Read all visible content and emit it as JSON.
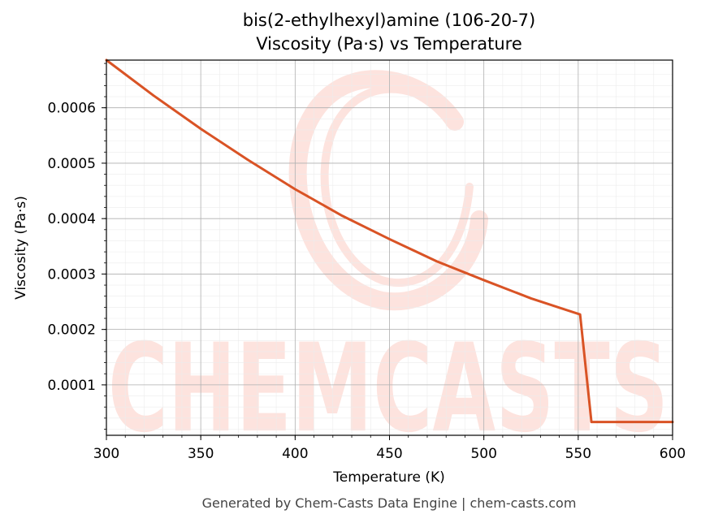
{
  "chart_data": {
    "type": "line",
    "title": "bis(2-ethylhexyl)amine (106-20-7)",
    "subtitle": "Viscosity (Pa·s) vs Temperature",
    "xlabel": "Temperature (K)",
    "ylabel": "Viscosity (Pa·s)",
    "xlim": [
      300,
      600
    ],
    "ylim": [
      9e-06,
      0.000686
    ],
    "x_ticks": [
      300,
      350,
      400,
      450,
      500,
      550,
      600
    ],
    "x_tick_labels": [
      "300",
      "350",
      "400",
      "450",
      "500",
      "550",
      "600"
    ],
    "y_ticks": [
      0.0001,
      0.0002,
      0.0003,
      0.0004,
      0.0005,
      0.0006
    ],
    "y_tick_labels": [
      "0.0001",
      "0.0002",
      "0.0003",
      "0.0004",
      "0.0005",
      "0.0006"
    ],
    "grid": true,
    "series": [
      {
        "color": "#d95325",
        "x": [
          300,
          325,
          350,
          375,
          400,
          425,
          450,
          475,
          500,
          525,
          551,
          557,
          560,
          580,
          600
        ],
        "y": [
          0.000686,
          0.000622,
          0.000562,
          0.000506,
          0.000453,
          0.000405,
          0.000363,
          0.000323,
          0.000289,
          0.000256,
          0.000227,
          3.3e-05,
          3.3e-05,
          3.3e-05,
          3.3e-05
        ]
      }
    ]
  },
  "watermark": {
    "text": "CHEMCASTS",
    "color": "#fde3de"
  },
  "footer": "Generated by Chem-Casts Data Engine | chem-casts.com"
}
